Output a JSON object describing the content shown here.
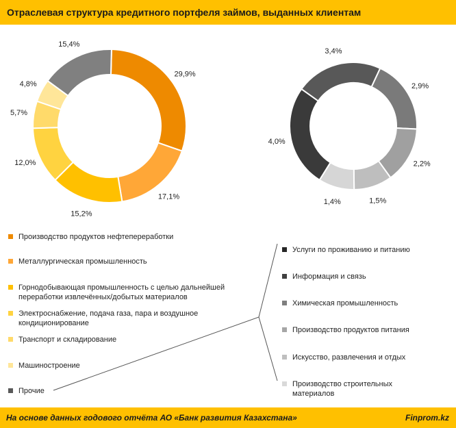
{
  "header": {
    "title": "Отраслевая структура кредитного портфеля займов, выданных клиентам"
  },
  "footer": {
    "source": "На основе данных годового отчёта АО «Банк развития Казахстана»",
    "brand": "Finprom.kz"
  },
  "chart_data": [
    {
      "type": "pie",
      "title": "",
      "categories": [
        "Производство продуктов нефтепереработки",
        "Металлургическая промышленность",
        "Горнодобывающая промышленность с целью дальнейшей переработки извлечённых/добытых материалов",
        "Электроснабжение, подача газа, пара и воздушное кондиционирование",
        "Транспорт и складирование",
        "Машиностроение",
        "Прочие"
      ],
      "values": [
        29.9,
        17.1,
        15.2,
        12.0,
        5.7,
        4.8,
        15.4
      ],
      "value_labels": [
        "29,9%",
        "17,1%",
        "15,2%",
        "12,0%",
        "5,7%",
        "4,8%",
        "15,4%"
      ],
      "colors": [
        "#EE8A00",
        "#FFA737",
        "#FFC000",
        "#FFD340",
        "#FFDA6A",
        "#FFE699",
        "#808080"
      ]
    },
    {
      "type": "pie",
      "title": "",
      "categories": [
        "Услуги по проживанию и питанию",
        "Информация и связь",
        "Химическая промышленность",
        "Производство продуктов питания",
        "Искусство, развлечения и отдых",
        "Производство строительных материалов"
      ],
      "values": [
        4.0,
        3.4,
        2.9,
        2.2,
        1.5,
        1.4
      ],
      "value_labels": [
        "4,0%",
        "3,4%",
        "2,9%",
        "2,2%",
        "1,5%",
        "1,4%"
      ],
      "colors": [
        "#3A3A3A",
        "#585858",
        "#7A7A7A",
        "#A0A0A0",
        "#BEBEBE",
        "#D6D6D6"
      ]
    }
  ],
  "legend_left": [
    {
      "label": "Производство продуктов нефтепереработки",
      "color": "#EE8A00"
    },
    {
      "label": "Металлургическая промышленность",
      "color": "#FFA737"
    },
    {
      "label": "Горнодобывающая промышленность с целью дальнейшей переработки извлечённых/добытых материалов",
      "color": "#FFC000"
    },
    {
      "label": "Электроснабжение, подача газа, пара и воздушное кондиционирование",
      "color": "#FFD340"
    },
    {
      "label": "Транспорт и складирование",
      "color": "#FFDA6A"
    },
    {
      "label": "Машиностроение",
      "color": "#FFE699"
    },
    {
      "label": "Прочие",
      "color": "#595959"
    }
  ],
  "legend_right": [
    {
      "label": "Услуги по проживанию и питанию",
      "color": "#262626"
    },
    {
      "label": "Информация и связь",
      "color": "#404040"
    },
    {
      "label": "Химическая промышленность",
      "color": "#7F7F7F"
    },
    {
      "label": "Производство продуктов питания",
      "color": "#A6A6A6"
    },
    {
      "label": "Искусство, развлечения и отдых",
      "color": "#BFBFBF"
    },
    {
      "label": "Производство строительных материалов",
      "color": "#D9D9D9"
    }
  ]
}
